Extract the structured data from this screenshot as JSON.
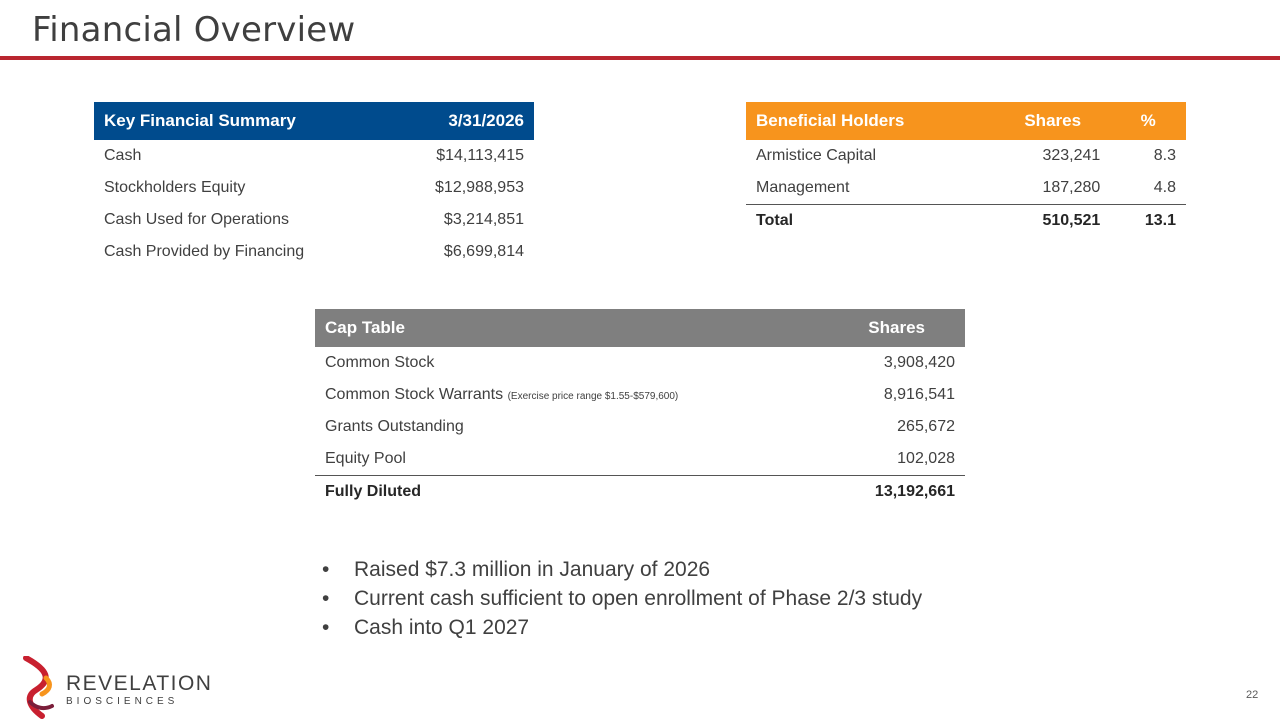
{
  "header": {
    "title": "Financial Overview"
  },
  "key_financial_summary": {
    "col_label": "Key Financial Summary",
    "col_date": "3/31/2026",
    "rows": [
      {
        "label": "Cash",
        "value": "$14,113,415"
      },
      {
        "label": "Stockholders Equity",
        "value": "$12,988,953"
      },
      {
        "label": "Cash Used for Operations",
        "value": "$3,214,851"
      },
      {
        "label": "Cash Provided by Financing",
        "value": "$6,699,814"
      }
    ]
  },
  "beneficial_holders": {
    "col_holder": "Beneficial Holders",
    "col_shares": "Shares",
    "col_pct": "%",
    "rows": [
      {
        "holder": "Armistice Capital",
        "shares": "323,241",
        "pct": "8.3"
      },
      {
        "holder": "Management",
        "shares": "187,280",
        "pct": "4.8"
      }
    ],
    "total": {
      "holder": "Total",
      "shares": "510,521",
      "pct": "13.1"
    }
  },
  "cap_table": {
    "col_label": "Cap Table",
    "col_shares": "Shares",
    "rows": [
      {
        "label": "Common Stock",
        "note": "",
        "shares": "3,908,420"
      },
      {
        "label": "Common Stock Warrants",
        "note": "(Exercise price range $1.55-$579,600)",
        "shares": "8,916,541"
      },
      {
        "label": "Grants Outstanding",
        "note": "",
        "shares": "265,672"
      },
      {
        "label": "Equity Pool",
        "note": "",
        "shares": "102,028"
      }
    ],
    "total": {
      "label": "Fully Diluted",
      "shares": "13,192,661"
    }
  },
  "bullets": [
    "Raised $7.3 million in January of 2026",
    "Current cash sufficient to open enrollment of Phase 2/3 study",
    "Cash into Q1 2027"
  ],
  "bullet_marker": "•",
  "logo": {
    "name": "REVELATION",
    "subtitle": "BIOSCIENCES"
  },
  "footer": {
    "page_number": "22"
  },
  "colors": {
    "accent_red": "#b9262f",
    "summary_header": "#004b8d",
    "holders_header": "#f7941d",
    "cap_header": "#7f7f7f"
  }
}
